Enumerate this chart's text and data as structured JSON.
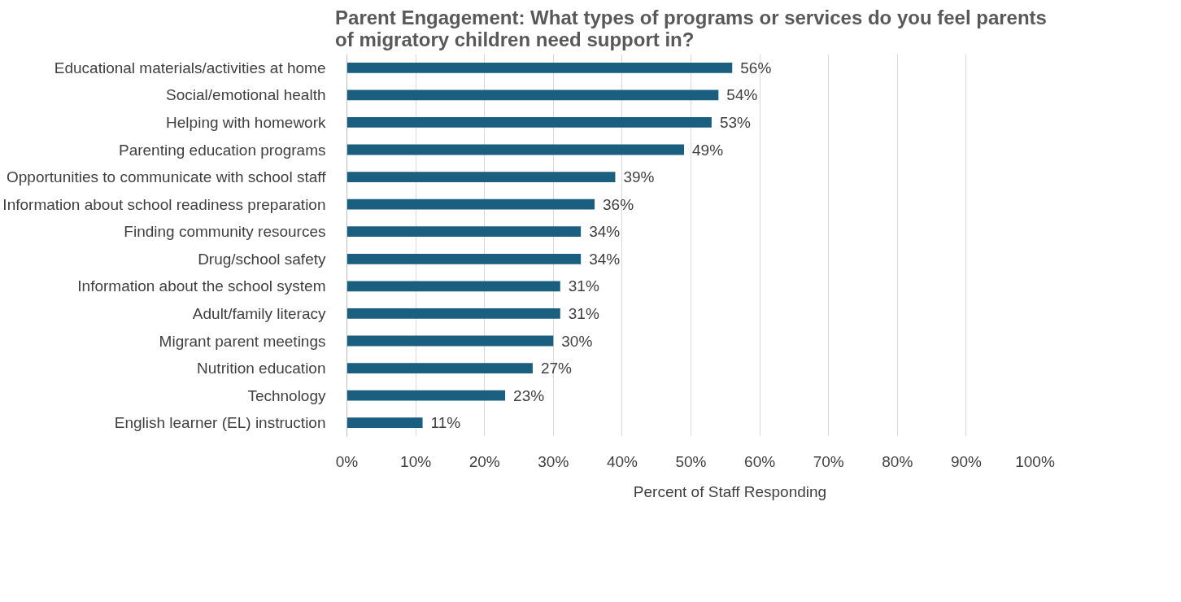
{
  "chart_data": {
    "type": "bar",
    "orientation": "horizontal",
    "title": "Parent Engagement: What types of programs or services do you feel parents of migratory children need support in?",
    "categories": [
      "Educational materials/activities at home",
      "Social/emotional health",
      "Helping with homework",
      "Parenting education programs",
      "Opportunities to communicate with school staff",
      "Information about school readiness preparation",
      "Finding community resources",
      "Drug/school safety",
      "Information about the school system",
      "Adult/family literacy",
      "Migrant parent meetings",
      "Nutrition education",
      "Technology",
      "English learner (EL) instruction"
    ],
    "series": [
      {
        "name": "Percent of Staff Responding",
        "color": "#1a5e80",
        "values": [
          56,
          54,
          53,
          49,
          39,
          36,
          34,
          34,
          31,
          31,
          30,
          27,
          23,
          11
        ],
        "value_labels": [
          "56%",
          "54%",
          "53%",
          "49%",
          "39%",
          "36%",
          "34%",
          "34%",
          "31%",
          "31%",
          "30%",
          "27%",
          "23%",
          "11%"
        ]
      }
    ],
    "xlim": [
      0,
      100
    ],
    "xticks": [
      {
        "value": 0,
        "label": "0%"
      },
      {
        "value": 10,
        "label": "10%"
      },
      {
        "value": 20,
        "label": "20%"
      },
      {
        "value": 30,
        "label": "30%"
      },
      {
        "value": 40,
        "label": "40%"
      },
      {
        "value": 50,
        "label": "50%"
      },
      {
        "value": 60,
        "label": "60%"
      },
      {
        "value": 70,
        "label": "70%"
      },
      {
        "value": 80,
        "label": "80%"
      },
      {
        "value": 90,
        "label": "90%"
      },
      {
        "value": 100,
        "label": "100%"
      }
    ],
    "grid": "x",
    "legend": "bottom"
  }
}
